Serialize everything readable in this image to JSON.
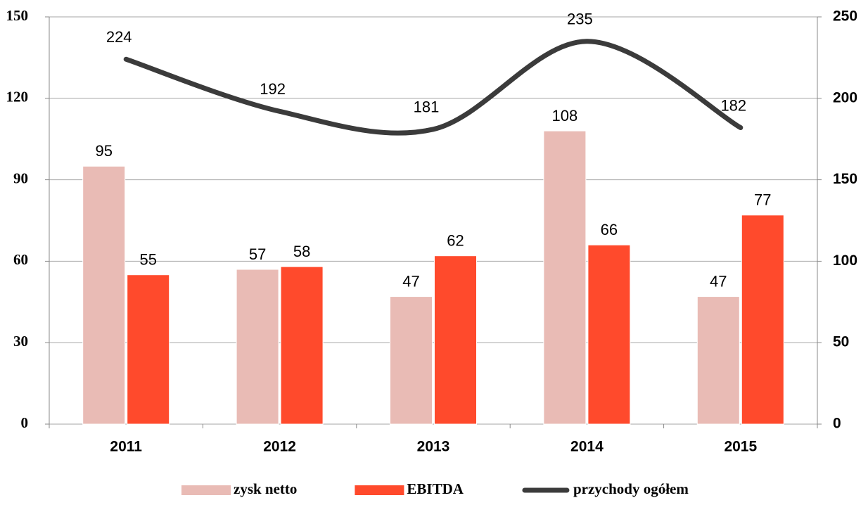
{
  "chart_data": {
    "type": "bar-line",
    "categories": [
      "2011",
      "2012",
      "2013",
      "2014",
      "2015"
    ],
    "series": [
      {
        "name": "zysk netto",
        "color": "#e9bbb5",
        "type": "bar",
        "values": [
          95,
          57,
          47,
          108,
          47
        ]
      },
      {
        "name": "EBITDA",
        "color": "#ff4a2c",
        "type": "bar",
        "values": [
          55,
          58,
          62,
          66,
          77
        ]
      },
      {
        "name": "przychody ogółem",
        "color": "#3b3b3b",
        "type": "line",
        "axis": "y2",
        "values": [
          224,
          192,
          181,
          235,
          182
        ]
      }
    ],
    "ylim": [
      0,
      150
    ],
    "yticks": [
      0,
      30,
      60,
      90,
      120,
      150
    ],
    "y2lim": [
      0,
      250
    ],
    "y2ticks": [
      0,
      50,
      100,
      150,
      200,
      250
    ],
    "grid": true,
    "legend": "bottom"
  }
}
